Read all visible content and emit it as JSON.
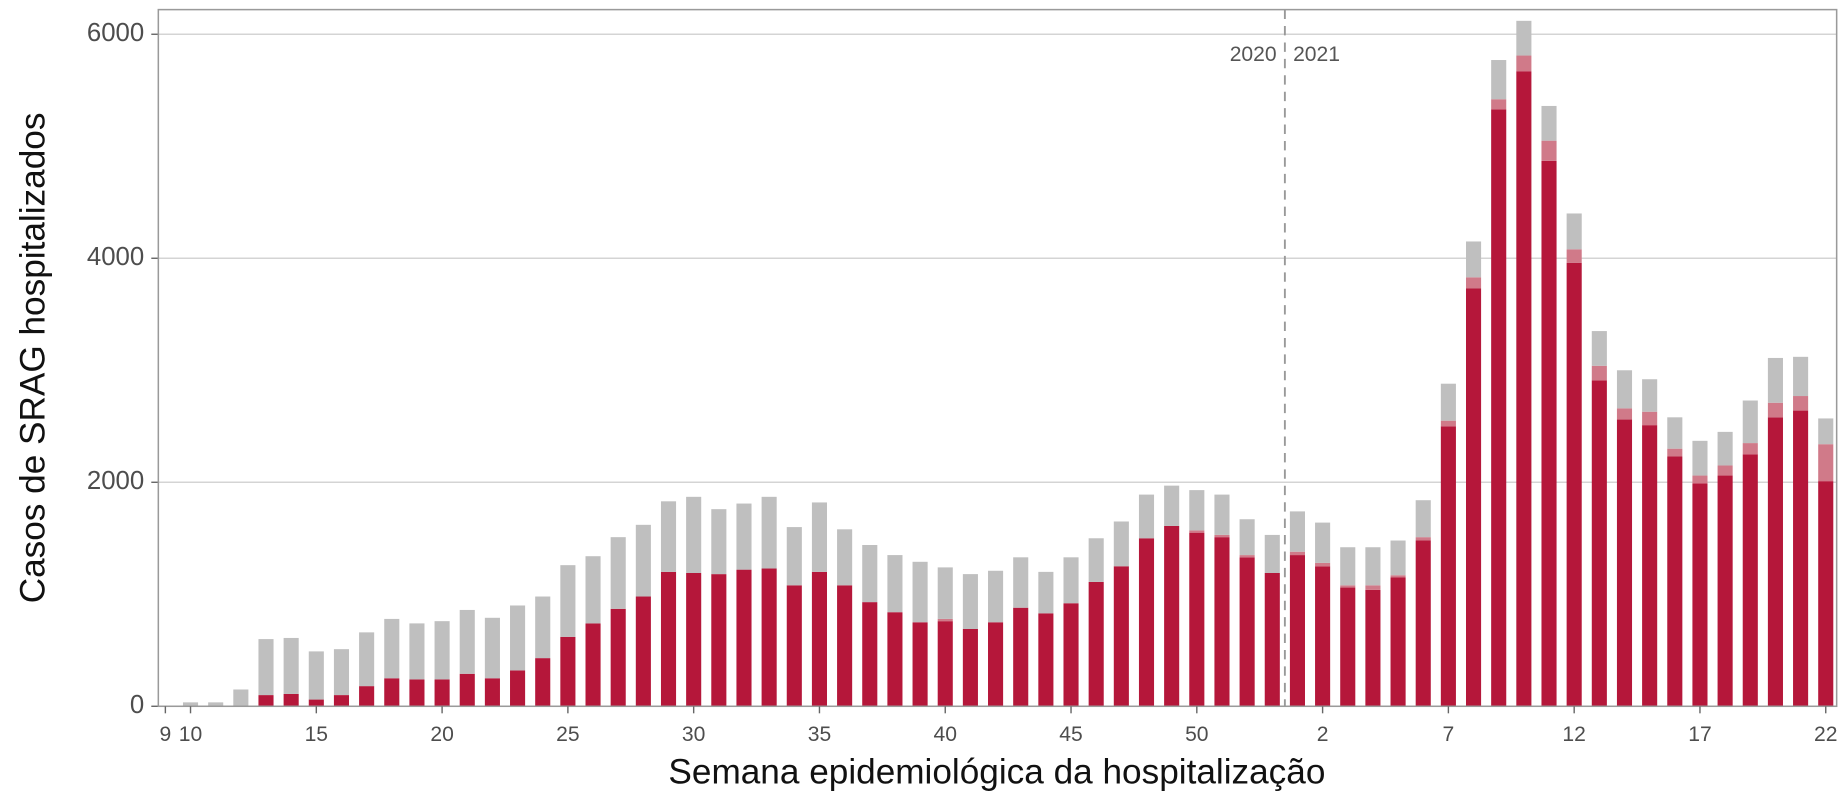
{
  "chart_data": {
    "type": "stacked_bar",
    "x_label": "Semana epidemiológica da hospitalização",
    "y_label": "Casos de SRAG hospitalizados",
    "annotations": [
      "2020",
      "2021"
    ],
    "categories": [
      "9",
      "10",
      null,
      null,
      null,
      null,
      "15",
      null,
      null,
      null,
      null,
      "20",
      null,
      null,
      null,
      null,
      "25",
      null,
      null,
      null,
      null,
      "30",
      null,
      null,
      null,
      null,
      "35",
      null,
      null,
      null,
      null,
      "40",
      null,
      null,
      null,
      null,
      "45",
      null,
      null,
      null,
      null,
      "50",
      null,
      null,
      null,
      null,
      "2",
      null,
      null,
      null,
      null,
      "7",
      null,
      null,
      null,
      null,
      "12",
      null,
      null,
      null,
      null,
      "17",
      null,
      null,
      null,
      null,
      "22"
    ],
    "series": [
      {
        "color": "#b5173a",
        "values": [
          0,
          0,
          0,
          0,
          100,
          110,
          60,
          100,
          180,
          250,
          240,
          240,
          290,
          250,
          320,
          430,
          620,
          740,
          870,
          980,
          1200,
          1190,
          1180,
          1220,
          1230,
          1080,
          1200,
          1080,
          930,
          840,
          750,
          760,
          690,
          750,
          880,
          830,
          920,
          1110,
          1250,
          1500,
          1610,
          1550,
          1510,
          1330,
          1190,
          1350,
          1250,
          1060,
          1040,
          1150,
          1480,
          2500,
          3730,
          5330,
          5670,
          4870,
          3960,
          2910,
          2560,
          2510,
          2230,
          1990,
          2060,
          2250,
          2580,
          2640,
          2010
        ]
      },
      {
        "color": "#d07a89",
        "values": [
          0,
          0,
          0,
          0,
          0,
          0,
          0,
          0,
          0,
          0,
          0,
          0,
          0,
          0,
          0,
          0,
          0,
          0,
          0,
          0,
          0,
          0,
          0,
          0,
          0,
          0,
          0,
          0,
          0,
          0,
          0,
          20,
          0,
          0,
          0,
          0,
          0,
          0,
          0,
          0,
          0,
          20,
          20,
          20,
          0,
          30,
          30,
          20,
          40,
          20,
          30,
          50,
          100,
          90,
          140,
          180,
          120,
          130,
          100,
          120,
          70,
          70,
          90,
          100,
          130,
          130,
          330
        ]
      },
      {
        "color": "#bfbfbf",
        "values": [
          0,
          35,
          35,
          150,
          500,
          500,
          430,
          410,
          480,
          530,
          500,
          520,
          570,
          540,
          580,
          550,
          640,
          600,
          640,
          640,
          630,
          680,
          580,
          590,
          640,
          520,
          620,
          500,
          510,
          510,
          540,
          460,
          490,
          460,
          450,
          370,
          410,
          390,
          400,
          390,
          360,
          360,
          360,
          320,
          340,
          360,
          360,
          340,
          340,
          310,
          330,
          330,
          320,
          350,
          310,
          310,
          320,
          310,
          340,
          290,
          280,
          310,
          300,
          380,
          400,
          350,
          230
        ]
      }
    ],
    "ylim": [
      0,
      6220
    ],
    "yticks": [
      0,
      2000,
      4000,
      6000
    ],
    "grid": true
  }
}
